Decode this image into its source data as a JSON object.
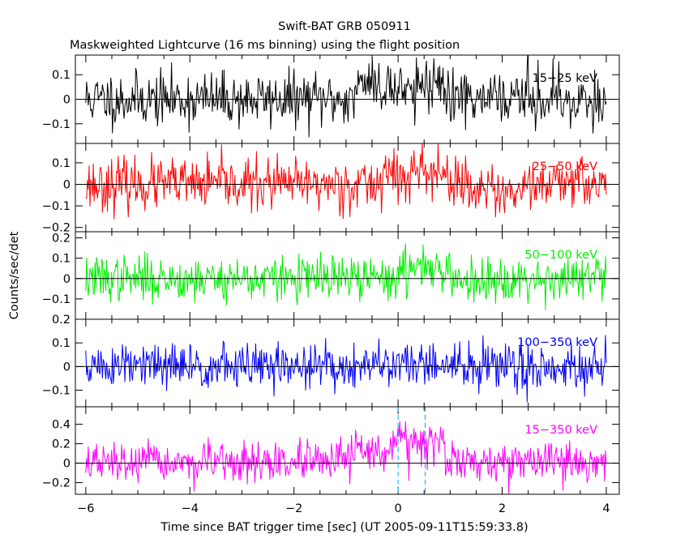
{
  "chart_data": {
    "type": "line",
    "title": "Swift-BAT GRB 050911",
    "subtitle": "Maskweighted Lightcurve (16 ms binning) using the flight position",
    "xlabel": "Time since BAT trigger time [sec] (UT 2005-09-11T15:59:33.8)",
    "ylabel": "Counts/sec/det",
    "xlim": [
      -6.2,
      4.25
    ],
    "x_ticks": [
      -6,
      -4,
      -2,
      0,
      2,
      4
    ],
    "x_tick_labels": [
      "−6",
      "−4",
      "−2",
      "0",
      "2",
      "4"
    ],
    "bin_width_sec": 0.016,
    "markers": [
      {
        "x": 0.0,
        "color": "#00aaff"
      },
      {
        "x": 0.52,
        "color": "#00aaff"
      }
    ],
    "panels": [
      {
        "name": "15-25 keV",
        "label": "15−25 keV",
        "color": "#000000",
        "ylim": [
          -0.18,
          0.18
        ],
        "y_ticks": [
          -0.1,
          0,
          0.1
        ],
        "y_tick_labels": [
          "−0.1",
          "0",
          "0.1"
        ],
        "noise_sigma": 0.055,
        "burst": [
          {
            "t0": -0.8,
            "t1": 0.9,
            "level": 0.06
          }
        ],
        "seed": 11
      },
      {
        "name": "25-50 keV",
        "label": "25−50 keV",
        "color": "#ff0000",
        "ylim": [
          -0.22,
          0.19
        ],
        "y_ticks": [
          -0.2,
          -0.1,
          0,
          0.1
        ],
        "y_tick_labels": [
          "−0.2",
          "−0.1",
          "0",
          "0.1"
        ],
        "noise_sigma": 0.06,
        "burst": [
          {
            "t0": -0.3,
            "t1": 1.0,
            "level": 0.05
          }
        ],
        "seed": 23
      },
      {
        "name": "50-100 keV",
        "label": "50−100 keV",
        "color": "#00ee00",
        "ylim": [
          -0.2,
          0.23
        ],
        "y_ticks": [
          -0.1,
          0,
          0.1,
          0.2
        ],
        "y_tick_labels": [
          "−0.1",
          "0",
          "0.1",
          "0.2"
        ],
        "noise_sigma": 0.055,
        "burst": [
          {
            "t0": 0.0,
            "t1": 0.8,
            "level": 0.06
          }
        ],
        "seed": 37
      },
      {
        "name": "100-350 keV",
        "label": "100−350 keV",
        "color": "#0000ff",
        "ylim": [
          -0.17,
          0.2
        ],
        "y_ticks": [
          -0.1,
          0,
          0.1,
          0.2
        ],
        "y_tick_labels": [
          "−0.1",
          "0",
          "0.1",
          "0.2"
        ],
        "noise_sigma": 0.05,
        "burst": [
          {
            "t0": 0.0,
            "t1": 0.5,
            "level": 0.02
          }
        ],
        "seed": 51
      },
      {
        "name": "15-350 keV",
        "label": "15−350 keV",
        "color": "#ff00ff",
        "ylim": [
          -0.32,
          0.58
        ],
        "y_ticks": [
          -0.2,
          0,
          0.2,
          0.4
        ],
        "y_tick_labels": [
          "−0.2",
          "0",
          "0.2",
          "0.4"
        ],
        "noise_sigma": 0.1,
        "burst": [
          {
            "t0": -0.9,
            "t1": -0.1,
            "level": 0.12
          },
          {
            "t0": -0.1,
            "t1": 0.9,
            "level": 0.27
          }
        ],
        "seed": 67
      }
    ]
  }
}
